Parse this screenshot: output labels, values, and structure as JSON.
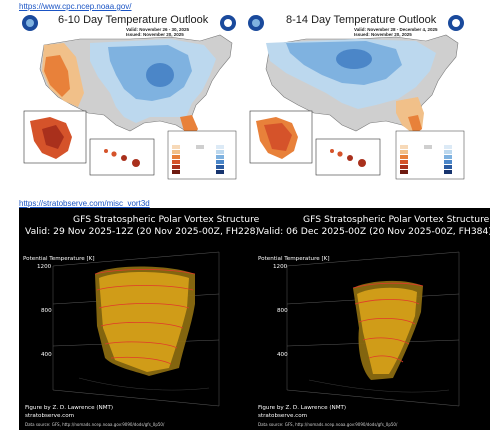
{
  "links": {
    "cpc": "https://www.cpc.ncep.noaa.gov/",
    "strato": "https://stratobserve.com/misc_vort3d"
  },
  "outlook_panels": [
    {
      "title": "6-10 Day Temperature Outlook",
      "valid": "Valid: November 26 - 30, 2025",
      "issued": "Issued: November 20, 2025"
    },
    {
      "title": "8-14 Day Temperature Outlook",
      "valid": "Valid: November 28 - December 4, 2025",
      "issued": "Issued: November 20, 2025"
    }
  ],
  "vortex_panels": [
    {
      "title": "GFS Stratospheric Polar Vortex Structure",
      "valid": "Valid: 29 Nov 2025-12Z  (20 Nov 2025-00Z, FH228)",
      "axis_label": "Potential Temperature [K]",
      "ticks": [
        "1200",
        "800",
        "400"
      ],
      "credit": "Figure by Z. D. Lawrence (NMT)",
      "site": "stratobserve.com",
      "source": "Data source: GFS, http://nomads.ncep.noaa.gov:9090/dods/gfs_0p50/"
    },
    {
      "title": "GFS Stratospheric Polar Vortex Structure",
      "valid": "Valid: 06 Dec 2025-00Z  (20 Nov 2025-00Z, FH384)",
      "axis_label": "Potential Temperature [K]",
      "ticks": [
        "1200",
        "800",
        "400"
      ],
      "credit": "Figure by Z. D. Lawrence (NMT)",
      "site": "stratobserve.com",
      "source": "Data source: GFS, http://nomads.ncep.noaa.gov:9090/dods/gfs_0p50/"
    }
  ],
  "colors": {
    "above": "#e8813a",
    "above_light": "#f1c089",
    "near": "#cfcfcf",
    "below_light": "#bcd8ee",
    "below": "#7fb2e0",
    "below_dark": "#4b86c8",
    "vortex": "#d8a21a",
    "vortex_edge": "#e03a2a"
  },
  "icons": [
    "noaa-logo-icon",
    "nws-logo-icon"
  ]
}
